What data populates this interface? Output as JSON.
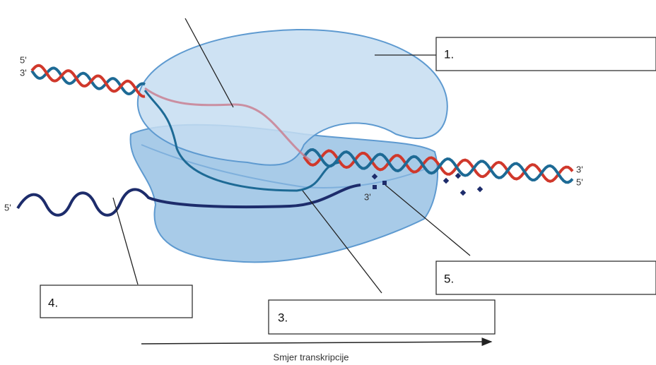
{
  "dna_left": {
    "top": "5'",
    "bottom": "3'"
  },
  "dna_right": {
    "top": "3'",
    "bottom": "5'"
  },
  "rna": {
    "start": "5'",
    "end": "3'"
  },
  "labels": [
    "1.",
    "3.",
    "4.",
    "5."
  ],
  "arrow": {
    "label": "Smjer transkripcije"
  }
}
